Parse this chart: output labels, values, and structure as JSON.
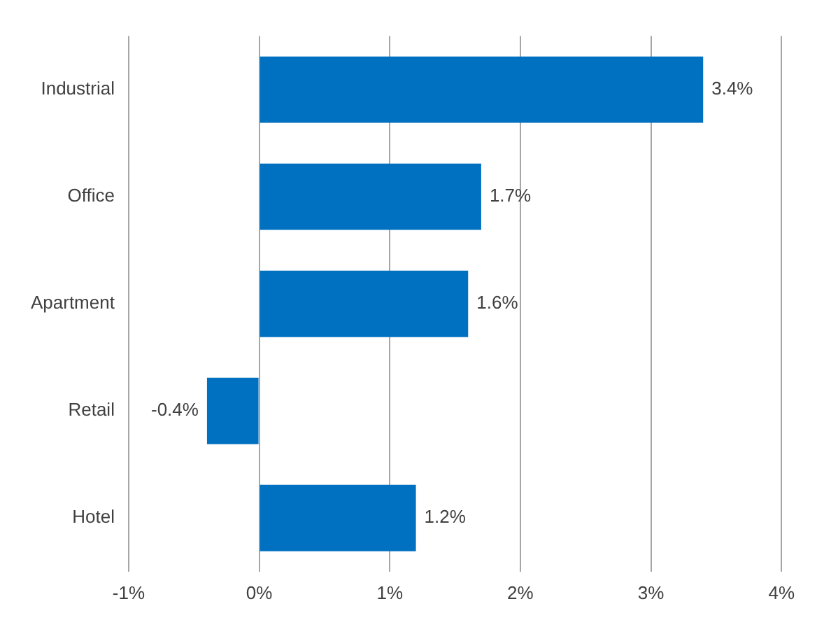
{
  "chart_data": {
    "type": "bar",
    "orientation": "horizontal",
    "categories": [
      "Industrial",
      "Office",
      "Apartment",
      "Retail",
      "Hotel"
    ],
    "values": [
      3.4,
      1.7,
      1.6,
      -0.4,
      1.2
    ],
    "color": "#0070c0",
    "value_labels": [
      "3.4%",
      "1.7%",
      "1.6%",
      "-0.4%",
      "1.2%"
    ],
    "xlim": [
      -1,
      4
    ],
    "xticks": [
      {
        "value": -1,
        "label": "-1%"
      },
      {
        "value": 0,
        "label": "0%"
      },
      {
        "value": 1,
        "label": "1%"
      },
      {
        "value": 2,
        "label": "2%"
      },
      {
        "value": 3,
        "label": "3%"
      },
      {
        "value": 4,
        "label": "4%"
      }
    ],
    "grid": "x",
    "legend": false
  }
}
